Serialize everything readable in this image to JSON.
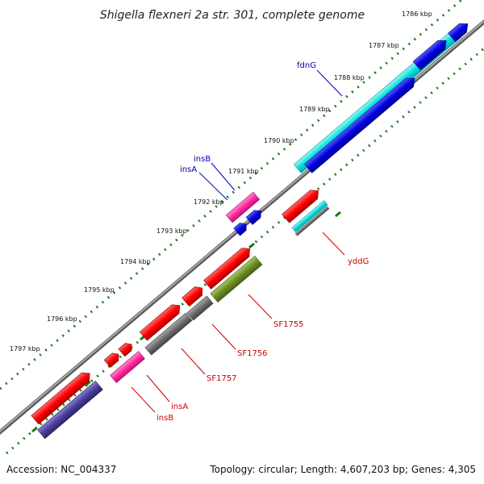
{
  "title": "Shigella flexneri 2a str. 301, complete genome",
  "footer": {
    "accession": "Accession: NC_004337",
    "topology": "Topology: circular; Length: 4,607,203 bp; Genes: 4,305"
  },
  "ticks": [
    "1786 kbp",
    "1787 kbp",
    "1788 kbp",
    "1789 kbp",
    "1790 kbp",
    "1791 kbp",
    "1792 kbp",
    "1793 kbp",
    "1794 kbp",
    "1795 kbp",
    "1796 kbp",
    "1797 kbp"
  ],
  "gene_labels": {
    "fdnG": "fdnG",
    "insB_top": "insB",
    "insA_top": "insA",
    "yddG": "yddG",
    "SF1755": "SF1755",
    "SF1756": "SF1756",
    "SF1757": "SF1757",
    "insA_bottom": "insA",
    "insB_bottom": "insB"
  },
  "colors": {
    "cds_forward": "#ff0000",
    "cds_reverse": "#0000e0",
    "cyan_feature": "#00e5e5",
    "pink_feature": "#ff2aa0",
    "grey_feature": "#6a6a6a",
    "olive_feature": "#6b8e23",
    "navy_feature": "#4a3f9a",
    "backbone": "#888888",
    "tick_dots": "#1a7a1a",
    "label_blue": "#0000aa",
    "label_red": "#cc0000"
  }
}
